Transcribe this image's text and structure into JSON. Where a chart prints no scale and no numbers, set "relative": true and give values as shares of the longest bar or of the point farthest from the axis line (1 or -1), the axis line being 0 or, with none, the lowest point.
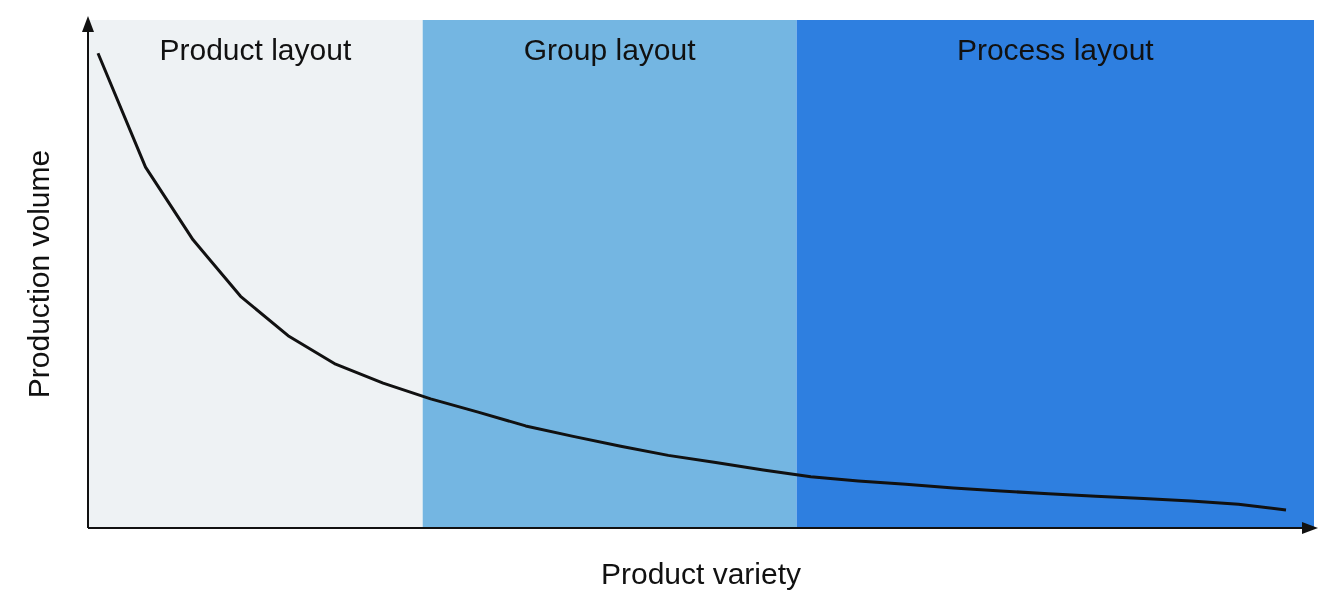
{
  "chart_data": {
    "type": "line",
    "relative": true,
    "xlabel": "Product variety",
    "ylabel": "Production volume",
    "grid": false,
    "legend": false,
    "marker": "none",
    "line_style": "solid",
    "categories": [
      null,
      null,
      null,
      null,
      null,
      null,
      null,
      null,
      null,
      null,
      null,
      null,
      null,
      null,
      null,
      null,
      null,
      null,
      null,
      null,
      null,
      null,
      null,
      null,
      null,
      null
    ],
    "annotations": [
      "Product layout",
      "Group layout",
      "Process layout"
    ],
    "series": [
      {
        "color": "#111111",
        "values": [
          1,
          0.76,
          0.607,
          0.488,
          0.405,
          0.345,
          0.305,
          0.272,
          0.244,
          0.215,
          0.193,
          0.172,
          0.153,
          0.138,
          0.122,
          0.108,
          0.099,
          0.092,
          0.084,
          0.078,
          0.072,
          0.067,
          0.062,
          0.057,
          0.05,
          0.038
        ]
      }
    ]
  }
}
